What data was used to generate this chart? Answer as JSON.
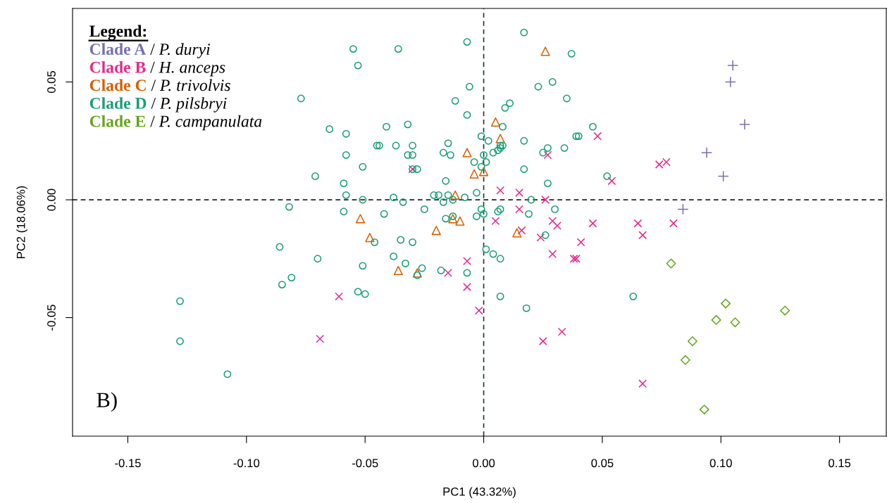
{
  "chart_data": {
    "type": "scatter",
    "xlabel": "PC1 (43.32%)",
    "ylabel": "PC2 (18.06%)",
    "legend_title": "Legend:",
    "legend": "top left",
    "xlim": [
      -0.1733,
      0.1697
    ],
    "ylim": [
      -0.1003,
      0.0812
    ],
    "xticks": [
      {
        "value": -0.15,
        "label": "-0.15"
      },
      {
        "value": -0.1,
        "label": "-0.10"
      },
      {
        "value": -0.05,
        "label": "-0.05"
      },
      {
        "value": 0,
        "label": "0.00"
      },
      {
        "value": 0.05,
        "label": "0.05"
      },
      {
        "value": 0.1,
        "label": "0.10"
      },
      {
        "value": 0.15,
        "label": "0.15"
      }
    ],
    "yticks": [
      {
        "value": -0.05,
        "label": "-0.05"
      },
      {
        "value": 0,
        "label": "0.00"
      },
      {
        "value": 0.05,
        "label": "0.05"
      }
    ],
    "grid": false,
    "ref_lines": [
      {
        "axis": "x",
        "value": 0,
        "line_style": "dashed",
        "color": "#1f3b33"
      },
      {
        "axis": "y",
        "value": 0,
        "line_style": "dashed",
        "color": "#000000"
      }
    ],
    "annotations": [
      "B)"
    ],
    "series": [
      {
        "name": "Clade A / P. duryi",
        "color": "#7570b3",
        "marker": "plus",
        "x": [
          0.105,
          0.104,
          0.11,
          0.094,
          0.101,
          0.084
        ],
        "values": [
          0.057,
          0.05,
          0.032,
          0.02,
          0.01,
          -0.004
        ]
      },
      {
        "name": "Clade B / H. anceps",
        "color": "#e7298a",
        "marker": "cross",
        "x": [
          -0.03,
          0.027,
          0.048,
          0.054,
          0.074,
          0.077,
          0.007,
          0.015,
          0.026,
          0.015,
          0.005,
          0.016,
          0.024,
          0.029,
          0.031,
          0.046,
          0.065,
          0.08,
          0.067,
          0.041,
          0.029,
          0.038,
          0.039,
          -0.007,
          -0.015,
          -0.007,
          -0.061,
          -0.002,
          -0.069,
          0.025,
          0.033,
          0.067
        ],
        "values": [
          0.013,
          0.019,
          0.027,
          0.008,
          0.015,
          0.016,
          0.004,
          0.003,
          0.0,
          -0.004,
          -0.009,
          -0.013,
          -0.016,
          -0.009,
          -0.011,
          -0.01,
          -0.01,
          -0.01,
          -0.015,
          -0.018,
          -0.023,
          -0.025,
          -0.025,
          -0.026,
          -0.031,
          -0.037,
          -0.041,
          -0.047,
          -0.059,
          -0.06,
          -0.056,
          -0.078
        ]
      },
      {
        "name": "Clade C / P. trivolvis",
        "color": "#d95f02",
        "marker": "triangle",
        "x": [
          0.026,
          0.005,
          0.007,
          -0.007,
          -0.004,
          0.0,
          -0.012,
          -0.052,
          -0.048,
          -0.02,
          -0.013,
          -0.01,
          -0.036,
          -0.028,
          0.014
        ],
        "values": [
          0.063,
          0.033,
          0.026,
          0.02,
          0.011,
          0.012,
          0.002,
          -0.008,
          -0.016,
          -0.013,
          -0.008,
          -0.009,
          -0.03,
          -0.031,
          -0.014
        ]
      },
      {
        "name": "Clade D / P. pilsbryi",
        "color": "#1b9e77",
        "marker": "circle",
        "x": [
          -0.077,
          -0.065,
          -0.058,
          -0.058,
          -0.071,
          -0.059,
          -0.058,
          -0.082,
          -0.059,
          -0.055,
          -0.036,
          -0.053,
          -0.007,
          0.017,
          0.037,
          -0.006,
          -0.012,
          0.023,
          0.029,
          0.035,
          -0.007,
          0.011,
          0.009,
          0.008,
          0.046,
          -0.041,
          -0.032,
          0.039,
          0.04,
          -0.001,
          0.002,
          0.017,
          -0.045,
          -0.044,
          -0.037,
          -0.03,
          -0.032,
          -0.03,
          -0.017,
          -0.014,
          -0.015,
          0.0,
          0.004,
          0.006,
          0.007,
          0.007,
          0.008,
          0.027,
          0.025,
          0.034,
          -0.004,
          0.001,
          -0.001,
          -0.051,
          -0.03,
          -0.028,
          0.017,
          0.052,
          0.027,
          -0.016,
          -0.051,
          -0.038,
          -0.034,
          -0.021,
          -0.019,
          -0.015,
          -0.013,
          -0.008,
          -0.003,
          -0.017,
          -0.025,
          -0.042,
          -0.001,
          0.0,
          0.006,
          0.007,
          0.02,
          0.019,
          0.03,
          -0.013,
          -0.016,
          -0.003,
          -0.046,
          -0.035,
          -0.03,
          -0.038,
          -0.033,
          -0.051,
          -0.026,
          -0.028,
          -0.018,
          -0.007,
          -0.053,
          -0.05,
          0.001,
          0.004,
          0.007,
          0.026,
          0.007,
          0.018,
          -0.086,
          -0.07,
          -0.081,
          -0.085,
          -0.128,
          -0.128,
          -0.108,
          0.063
        ],
        "values": [
          0.043,
          0.03,
          0.028,
          0.019,
          0.01,
          0.007,
          0.002,
          -0.003,
          -0.005,
          0.064,
          0.064,
          0.057,
          0.067,
          0.071,
          0.062,
          0.048,
          0.042,
          0.048,
          0.05,
          0.043,
          0.036,
          0.041,
          0.039,
          0.031,
          0.031,
          0.031,
          0.032,
          0.027,
          0.027,
          0.027,
          0.025,
          0.025,
          0.023,
          0.023,
          0.023,
          0.023,
          0.019,
          0.019,
          0.02,
          0.019,
          0.024,
          0.019,
          0.02,
          0.021,
          0.022,
          0.023,
          0.023,
          0.022,
          0.02,
          0.022,
          0.016,
          0.016,
          0.014,
          0.014,
          0.013,
          0.013,
          0.013,
          0.01,
          0.007,
          0.008,
          0.0,
          0.001,
          -0.001,
          0.002,
          0.002,
          0.002,
          0.0,
          0.001,
          0.003,
          -0.001,
          -0.004,
          -0.006,
          -0.004,
          -0.006,
          -0.005,
          -0.004,
          0.0,
          -0.006,
          -0.004,
          -0.007,
          -0.008,
          -0.007,
          -0.018,
          -0.017,
          -0.018,
          -0.024,
          -0.027,
          -0.028,
          -0.029,
          -0.032,
          -0.03,
          -0.031,
          -0.039,
          -0.04,
          -0.021,
          -0.023,
          -0.025,
          -0.015,
          -0.041,
          -0.046,
          -0.02,
          -0.025,
          -0.033,
          -0.036,
          -0.043,
          -0.06,
          -0.074,
          -0.041
        ]
      },
      {
        "name": "Clade E / P. campanulata",
        "color": "#66a61e",
        "marker": "diamond",
        "x": [
          0.079,
          0.102,
          0.098,
          0.106,
          0.127,
          0.088,
          0.085,
          0.093
        ],
        "values": [
          -0.027,
          -0.044,
          -0.051,
          -0.052,
          -0.047,
          -0.06,
          -0.068,
          -0.089
        ]
      }
    ]
  }
}
